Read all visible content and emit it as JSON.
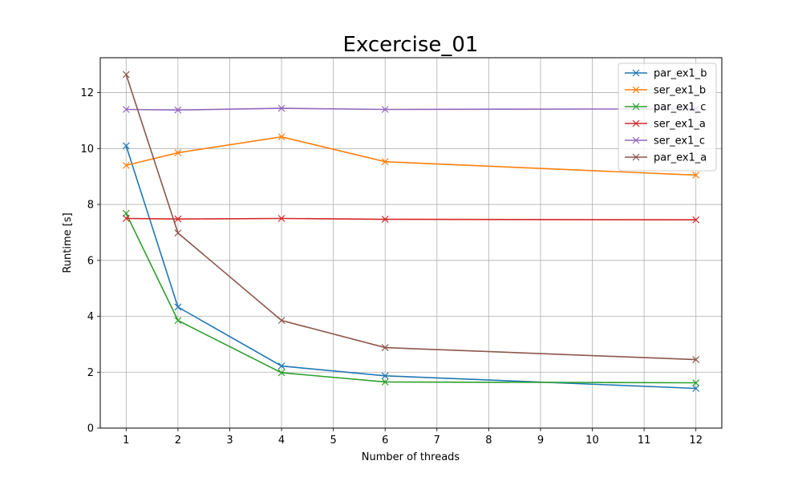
{
  "chart_data": {
    "type": "line",
    "title": "Excercise_01",
    "xlabel": "Number of threads",
    "ylabel": "Runtime [s]",
    "xlim": [
      0.5,
      12.5
    ],
    "ylim": [
      0,
      13.25
    ],
    "xticks": [
      1,
      2,
      3,
      4,
      5,
      6,
      7,
      8,
      9,
      10,
      11,
      12
    ],
    "yticks": [
      0,
      2,
      4,
      6,
      8,
      10,
      12
    ],
    "grid": true,
    "legend_position": "top-right",
    "x": [
      1,
      2,
      4,
      6,
      12
    ],
    "series": [
      {
        "name": "par_ex1_b",
        "color": "#1f77b4",
        "marker": "x",
        "values": [
          10.1,
          4.33,
          2.22,
          1.87,
          1.42
        ]
      },
      {
        "name": "ser_ex1_b",
        "color": "#ff7f0e",
        "marker": "x",
        "values": [
          9.4,
          9.85,
          10.42,
          9.53,
          9.05
        ]
      },
      {
        "name": "par_ex1_c",
        "color": "#2ca02c",
        "marker": "x",
        "values": [
          7.68,
          3.85,
          1.98,
          1.65,
          1.62
        ]
      },
      {
        "name": "ser_ex1_a",
        "color": "#d62728",
        "marker": "x",
        "values": [
          7.5,
          7.48,
          7.5,
          7.47,
          7.45
        ]
      },
      {
        "name": "ser_ex1_c",
        "color": "#9467bd",
        "marker": "x",
        "values": [
          11.4,
          11.38,
          11.44,
          11.4,
          11.42
        ]
      },
      {
        "name": "par_ex1_a",
        "color": "#8c564b",
        "marker": "x",
        "values": [
          12.65,
          6.98,
          3.85,
          2.88,
          2.45
        ]
      }
    ]
  }
}
